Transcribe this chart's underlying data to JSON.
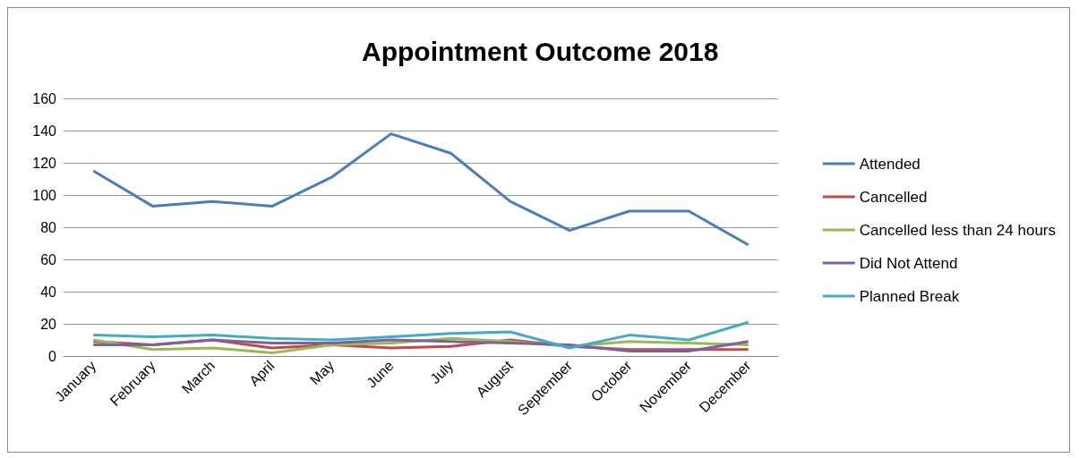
{
  "chart_data": {
    "type": "line",
    "title": "Appointment Outcome 2018",
    "categories": [
      "January",
      "February",
      "March",
      "April",
      "May",
      "June",
      "July",
      "August",
      "September",
      "October",
      "November",
      "December"
    ],
    "series": [
      {
        "name": "Attended",
        "color": "#4a7ebb",
        "values": [
          115,
          93,
          96,
          93,
          111,
          138,
          126,
          96,
          78,
          90,
          90,
          69
        ]
      },
      {
        "name": "Cancelled",
        "color": "#be4b48",
        "values": [
          9,
          7,
          10,
          5,
          7,
          5,
          6,
          10,
          6,
          4,
          4,
          4
        ]
      },
      {
        "name": "Cancelled less than 24 hours",
        "color": "#98b954",
        "values": [
          10,
          4,
          5,
          2,
          7,
          8,
          11,
          9,
          6,
          9,
          8,
          7
        ]
      },
      {
        "name": "Did Not Attend",
        "color": "#7d60a0",
        "values": [
          7,
          7,
          10,
          8,
          8,
          10,
          9,
          8,
          7,
          3,
          3,
          9
        ]
      },
      {
        "name": "Planned Break",
        "color": "#46aac5",
        "values": [
          13,
          12,
          13,
          11,
          10,
          12,
          14,
          15,
          5,
          13,
          10,
          21
        ]
      }
    ],
    "ylim": [
      0,
      160
    ],
    "yticks": [
      0,
      20,
      40,
      60,
      80,
      100,
      120,
      140,
      160
    ],
    "grid": "y",
    "legend": "right",
    "marker": "none",
    "line_style": "solid"
  }
}
